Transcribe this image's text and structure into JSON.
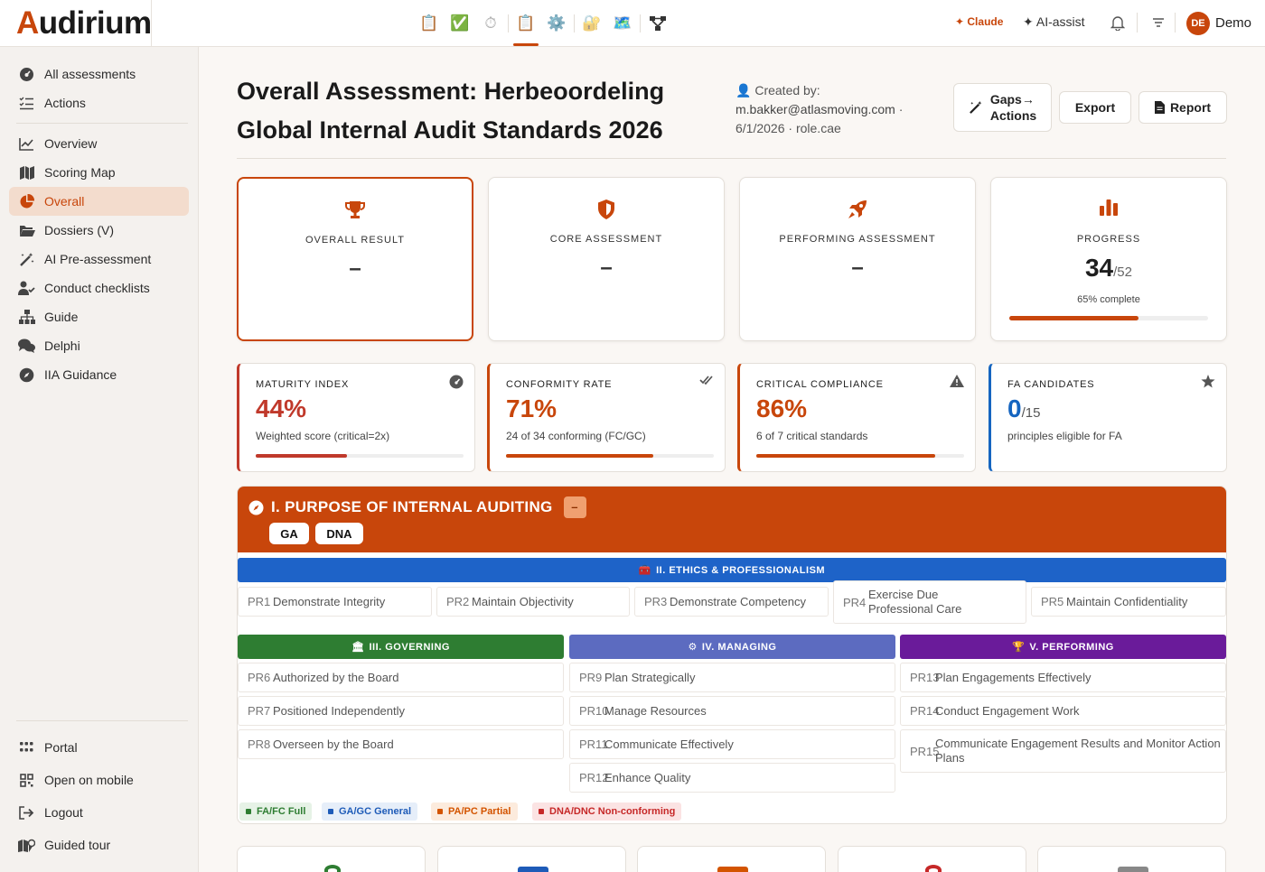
{
  "app": {
    "logo_first": "A",
    "logo_rest": "udirium",
    "claude_label": "Claude",
    "ai_assist_label": "AI-assist",
    "avatar_initials": "DE",
    "user_name": "Demo"
  },
  "toolbar": {
    "icons": [
      "clipboard-icon",
      "checkmark-icon",
      "stopwatch-icon",
      "clipboard-active-icon",
      "gear-icon",
      "folder-lock-icon",
      "map-icon",
      "network-icon"
    ]
  },
  "sidebar": {
    "top": [
      {
        "label": "All assessments",
        "icon": "dashboard-icon"
      },
      {
        "label": "Actions",
        "icon": "list-check-icon"
      }
    ],
    "main": [
      {
        "label": "Overview",
        "icon": "line-chart-icon"
      },
      {
        "label": "Scoring Map",
        "icon": "map-icon"
      },
      {
        "label": "Overall",
        "icon": "pie-chart-icon",
        "active": true
      },
      {
        "label": "Dossiers (V)",
        "icon": "folder-open-icon"
      },
      {
        "label": "AI Pre-assessment",
        "icon": "magic-wand-icon"
      },
      {
        "label": "Conduct checklists",
        "icon": "user-check-icon"
      },
      {
        "label": "Guide",
        "icon": "sitemap-icon"
      },
      {
        "label": "Delphi",
        "icon": "comments-icon"
      },
      {
        "label": "IIA Guidance",
        "icon": "compass-icon"
      }
    ],
    "bottom": [
      {
        "label": "Portal",
        "icon": "grid-icon"
      },
      {
        "label": "Open on mobile",
        "icon": "qr-icon"
      },
      {
        "label": "Logout",
        "icon": "logout-icon"
      },
      {
        "label": "Guided tour",
        "icon": "map-marker-icon"
      }
    ]
  },
  "header": {
    "title_line1": "Overall Assessment: Herbeoordeling",
    "title_line2": "Global Internal Audit Standards 2026",
    "created_by_label": "Created by:",
    "email": "m.bakker@atlasmoving.com",
    "dot": "·",
    "date": "6/1/2026",
    "role": "role.cae",
    "gaps_line1": "Gaps→",
    "gaps_line2": "Actions",
    "export_label": "Export",
    "report_label": "Report"
  },
  "summary_cards": [
    {
      "label": "OVERALL RESULT",
      "value": "–",
      "icon": "trophy-icon"
    },
    {
      "label": "CORE ASSESSMENT",
      "value": "–",
      "icon": "shield-icon"
    },
    {
      "label": "PERFORMING ASSESSMENT",
      "value": "–",
      "icon": "rocket-icon"
    }
  ],
  "progress": {
    "label": "PROGRESS",
    "done": "34",
    "total": "/52",
    "sub": "65% complete",
    "fraction": 0.65,
    "icon": "bar-chart-icon"
  },
  "kpis": [
    {
      "label": "MATURITY INDEX",
      "value": "44%",
      "suffix": "",
      "sub": "Weighted score (critical=2x)",
      "color": "#c0392b",
      "fraction": 0.44,
      "icon": "gauge-icon"
    },
    {
      "label": "CONFORMITY RATE",
      "value": "71%",
      "suffix": "",
      "sub": "24 of 34 conforming (FC/GC)",
      "color": "#c8460b",
      "fraction": 0.71,
      "icon": "double-check-icon"
    },
    {
      "label": "CRITICAL COMPLIANCE",
      "value": "86%",
      "suffix": "",
      "sub": "6 of 7 critical standards",
      "color": "#c8460b",
      "fraction": 0.86,
      "icon": "warning-icon"
    },
    {
      "label": "FA CANDIDATES",
      "value": "0",
      "suffix": "/15",
      "sub": "principles eligible for FA",
      "color": "#1565c0",
      "fraction": 0,
      "icon": "star-icon"
    }
  ],
  "domain1": {
    "title": "I. PURPOSE OF INTERNAL AUDITING",
    "badge": "–",
    "pills": [
      "GA",
      "DNA"
    ],
    "color": "#c8460b"
  },
  "domain2": {
    "title": "II. ETHICS & PROFESSIONALISM",
    "color": "#1e63c8",
    "principles": [
      {
        "code": "PR1",
        "name": "Demonstrate Integrity"
      },
      {
        "code": "PR2",
        "name": "Maintain Objectivity"
      },
      {
        "code": "PR3",
        "name": "Demonstrate Competency"
      },
      {
        "code": "PR4",
        "name": "Exercise Due Professional Care"
      },
      {
        "code": "PR5",
        "name": "Maintain Confidentiality"
      }
    ]
  },
  "domain3": {
    "title": "III. GOVERNING",
    "color": "#2e7d32",
    "principles": [
      {
        "code": "PR6",
        "name": "Authorized by the Board"
      },
      {
        "code": "PR7",
        "name": "Positioned Independently"
      },
      {
        "code": "PR8",
        "name": "Overseen by the Board"
      }
    ]
  },
  "domain4": {
    "title": "IV. MANAGING",
    "color": "#5c6bc0",
    "principles": [
      {
        "code": "PR9",
        "name": "Plan Strategically"
      },
      {
        "code": "PR10",
        "name": "Manage Resources"
      },
      {
        "code": "PR11",
        "name": "Communicate Effectively"
      },
      {
        "code": "PR12",
        "name": "Enhance Quality"
      }
    ]
  },
  "domain5": {
    "title": "V. PERFORMING",
    "color": "#6a1b9a",
    "principles": [
      {
        "code": "PR13",
        "name": "Plan Engagements Effectively"
      },
      {
        "code": "PR14",
        "name": "Conduct Engagement Work"
      },
      {
        "code": "PR15",
        "name": "Communicate Engagement Results and Monitor Action Plans"
      }
    ]
  },
  "legend": [
    {
      "label": "FA/FC Full",
      "bg": "#e6f2e6",
      "fg": "#2e7d32"
    },
    {
      "label": "GA/GC General",
      "bg": "#e6eef9",
      "fg": "#1e5bb8"
    },
    {
      "label": "PA/PC Partial",
      "bg": "#fcebdd",
      "fg": "#d35400"
    },
    {
      "label": "DNA/DNC Non-conforming",
      "bg": "#fbe3e3",
      "fg": "#c62828"
    }
  ]
}
